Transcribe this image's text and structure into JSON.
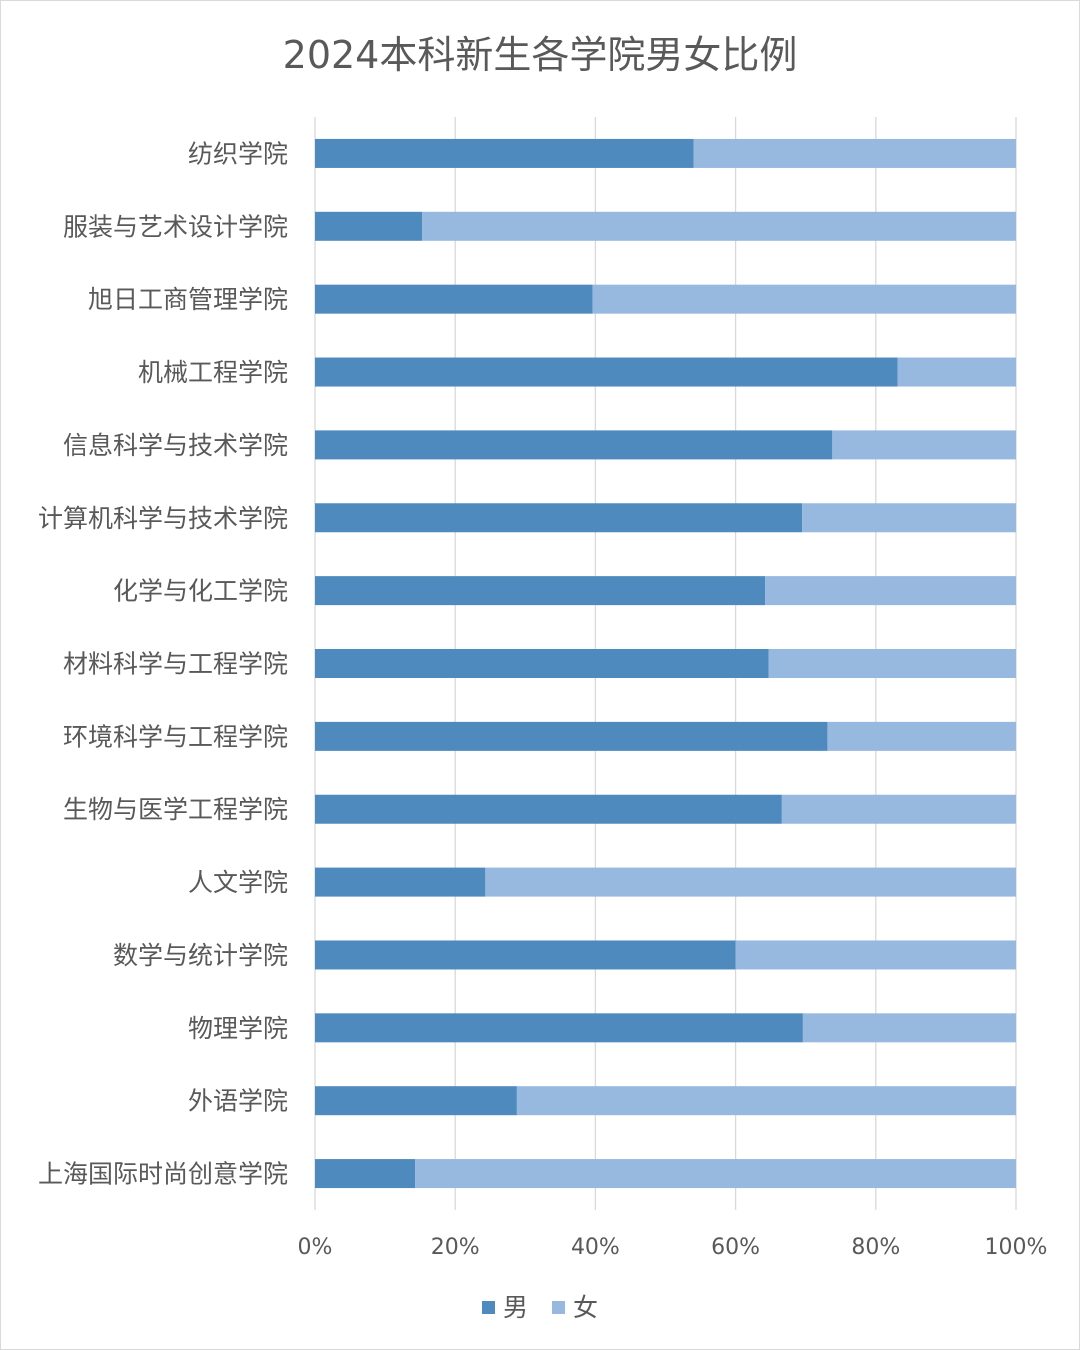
{
  "chart_data": {
    "type": "bar",
    "orientation": "horizontal",
    "stacked": "percent",
    "title": "2024本科新生各学院男女比例",
    "categories": [
      "纺织学院",
      "服装与艺术设计学院",
      "旭日工商管理学院",
      "机械工程学院",
      "信息科学与技术学院",
      "计算机科学与技术学院",
      "化学与化工学院",
      "材料科学与工程学院",
      "环境科学与工程学院",
      "生物与医学工程学院",
      "人文学院",
      "数学与统计学院",
      "物理学院",
      "外语学院",
      "上海国际时尚创意学院"
    ],
    "series": [
      {
        "name": "男",
        "color": "#4e8abe",
        "values": [
          54,
          15.3,
          39.6,
          83.1,
          73.8,
          69.5,
          64.2,
          64.7,
          73.1,
          66.6,
          24.3,
          60,
          69.6,
          28.8,
          14.3
        ]
      },
      {
        "name": "女",
        "color": "#97b8df",
        "values": [
          46,
          84.7,
          60.4,
          16.9,
          26.2,
          30.5,
          35.8,
          35.3,
          26.9,
          33.4,
          75.7,
          40,
          30.4,
          71.2,
          85.7
        ]
      }
    ],
    "xlim": [
      0,
      100
    ],
    "x_ticks": [
      "0%",
      "20%",
      "40%",
      "60%",
      "80%",
      "100%"
    ],
    "grid": true,
    "legend_position": "bottom"
  }
}
